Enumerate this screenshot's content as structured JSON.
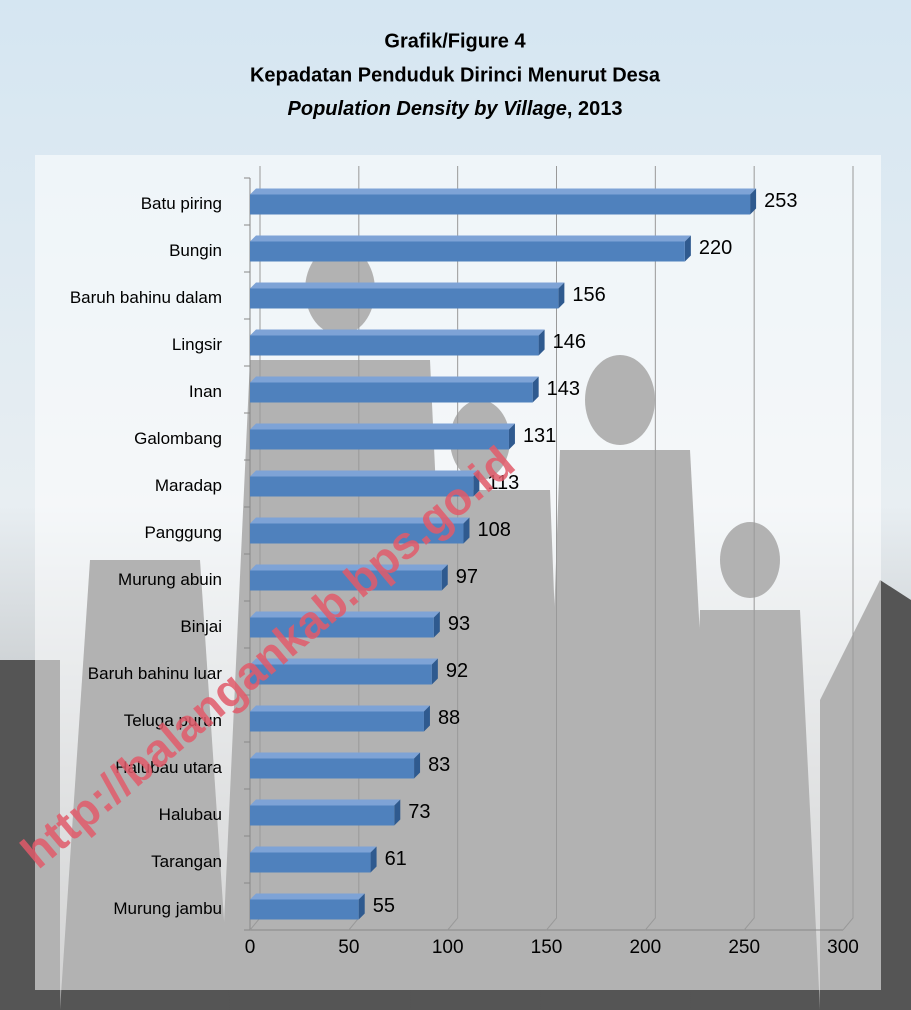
{
  "chart_data": {
    "type": "hbar",
    "title": {
      "label": "Grafik/Figure 4",
      "id": "Kepadatan Penduduk Dirinci Menurut Desa",
      "en": "Population Density by Village",
      "year": ", 2013"
    },
    "watermark": "http://balangankab.bps.go.id",
    "categories": [
      "Batu piring",
      "Bungin",
      "Baruh bahinu dalam",
      "Lingsir",
      "Inan",
      "Galombang",
      "Maradap",
      "Panggung",
      "Murung abuin",
      "Binjai",
      "Baruh bahinu luar",
      "Teluga purun",
      "Halubau utara",
      "Halubau",
      "Tarangan",
      "Murung jambu"
    ],
    "values": [
      253,
      220,
      156,
      146,
      143,
      131,
      113,
      108,
      97,
      93,
      92,
      88,
      83,
      73,
      61,
      55
    ],
    "color": "#4f81bd",
    "xlim": [
      0,
      300
    ],
    "xticks": [
      0,
      50,
      100,
      150,
      200,
      250,
      300
    ],
    "grid": true
  }
}
